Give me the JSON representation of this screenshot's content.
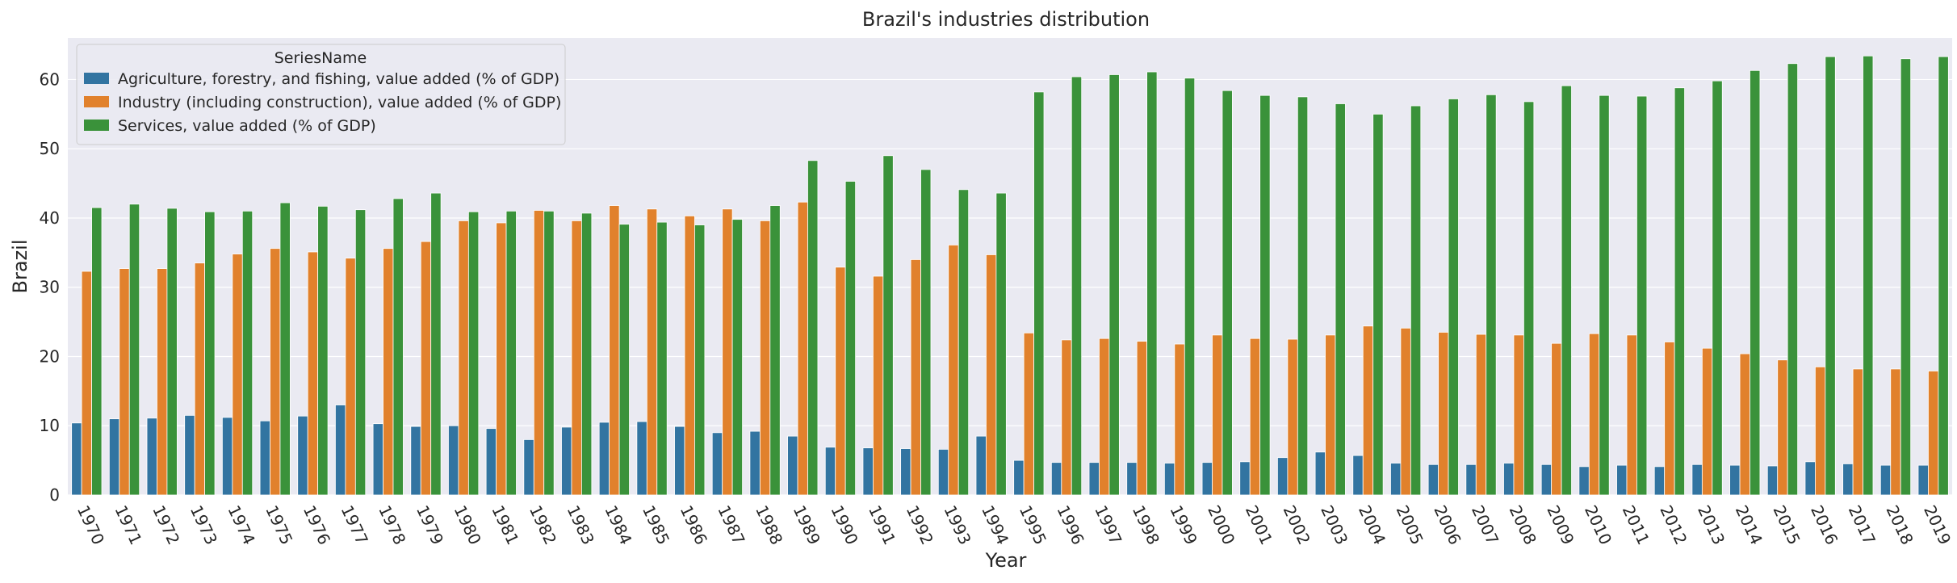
{
  "chart_data": {
    "type": "bar",
    "title": "Brazil's industries distribution",
    "xlabel": "Year",
    "ylabel": "Brazil",
    "ylim": [
      0,
      66
    ],
    "yticks": [
      0,
      10,
      20,
      30,
      40,
      50,
      60
    ],
    "grid": true,
    "legend": {
      "title": "SeriesName",
      "position": "top-left"
    },
    "categories": [
      "1970",
      "1971",
      "1972",
      "1973",
      "1974",
      "1975",
      "1976",
      "1977",
      "1978",
      "1979",
      "1980",
      "1981",
      "1982",
      "1983",
      "1984",
      "1985",
      "1986",
      "1987",
      "1988",
      "1989",
      "1990",
      "1991",
      "1992",
      "1993",
      "1994",
      "1995",
      "1996",
      "1997",
      "1998",
      "1999",
      "2000",
      "2001",
      "2002",
      "2003",
      "2004",
      "2005",
      "2006",
      "2007",
      "2008",
      "2009",
      "2010",
      "2011",
      "2012",
      "2013",
      "2014",
      "2015",
      "2016",
      "2017",
      "2018",
      "2019"
    ],
    "series": [
      {
        "name": "Agriculture, forestry, and fishing, value added (% of GDP)",
        "color": "#3274a1",
        "values": [
          10.4,
          11.0,
          11.1,
          11.5,
          11.2,
          10.7,
          11.4,
          13.0,
          10.3,
          9.9,
          10.0,
          9.6,
          8.0,
          9.8,
          10.5,
          10.6,
          9.9,
          9.0,
          9.2,
          8.5,
          6.9,
          6.8,
          6.7,
          6.6,
          8.5,
          5.0,
          4.7,
          4.7,
          4.7,
          4.6,
          4.7,
          4.8,
          5.4,
          6.2,
          5.7,
          4.6,
          4.4,
          4.4,
          4.6,
          4.4,
          4.1,
          4.3,
          4.1,
          4.4,
          4.3,
          4.2,
          4.8,
          4.5,
          4.3,
          4.3
        ]
      },
      {
        "name": "Industry (including construction), value added (% of GDP)",
        "color": "#e1812c",
        "values": [
          32.3,
          32.7,
          32.7,
          33.5,
          34.8,
          35.6,
          35.1,
          34.2,
          35.6,
          36.6,
          39.6,
          39.3,
          41.1,
          39.6,
          41.8,
          41.3,
          40.3,
          41.3,
          39.6,
          42.3,
          32.9,
          31.6,
          34.0,
          36.1,
          34.7,
          23.4,
          22.4,
          22.6,
          22.2,
          21.8,
          23.1,
          22.6,
          22.5,
          23.1,
          24.4,
          24.1,
          23.5,
          23.2,
          23.1,
          21.9,
          23.3,
          23.1,
          22.1,
          21.2,
          20.4,
          19.5,
          18.5,
          18.2,
          18.2,
          17.9
        ]
      },
      {
        "name": "Services, value added (% of GDP)",
        "color": "#3a923a",
        "values": [
          41.5,
          42.0,
          41.4,
          40.9,
          41.0,
          42.2,
          41.7,
          41.2,
          42.8,
          43.6,
          40.9,
          41.0,
          41.0,
          40.7,
          39.1,
          39.4,
          39.0,
          39.8,
          41.8,
          48.3,
          45.3,
          49.0,
          47.0,
          44.1,
          43.6,
          58.2,
          60.4,
          60.7,
          61.1,
          60.2,
          58.4,
          57.7,
          57.5,
          56.5,
          55.0,
          56.2,
          57.2,
          57.8,
          56.8,
          59.1,
          57.7,
          57.6,
          58.8,
          59.8,
          61.3,
          62.3,
          63.3,
          63.4,
          63.0,
          63.3
        ]
      }
    ]
  },
  "colors": {
    "plot_background": "#eaeaf2",
    "grid": "#ffffff",
    "text": "#262626"
  }
}
